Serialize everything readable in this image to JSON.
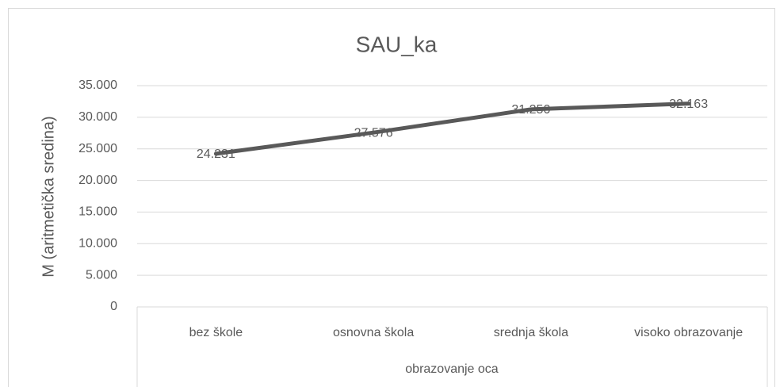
{
  "chart_data": {
    "type": "line",
    "title": "SAU_ka",
    "y_label": "M (aritmetička sredina)",
    "x_label": "obrazovanje oca",
    "categories": [
      "bez škole",
      "osnovna škola",
      "srednja škola",
      "visoko obrazovanje"
    ],
    "values": [
      24.231,
      27.576,
      31.25,
      32.163
    ],
    "value_labels": [
      "24.231",
      "27.576",
      "31.250",
      "32.163"
    ],
    "color": "#595959",
    "ylim": [
      0,
      35
    ],
    "yticks": [
      0,
      {
        "value": 5,
        "label": "5.000"
      },
      {
        "value": 10,
        "label": "10.000"
      },
      {
        "value": 15,
        "label": "15.000"
      },
      {
        "value": 20,
        "label": "20.000"
      },
      {
        "value": 25,
        "label": "25.000"
      },
      {
        "value": 30,
        "label": "30.000"
      },
      {
        "value": 35,
        "label": "35.000"
      }
    ],
    "grid": true
  }
}
